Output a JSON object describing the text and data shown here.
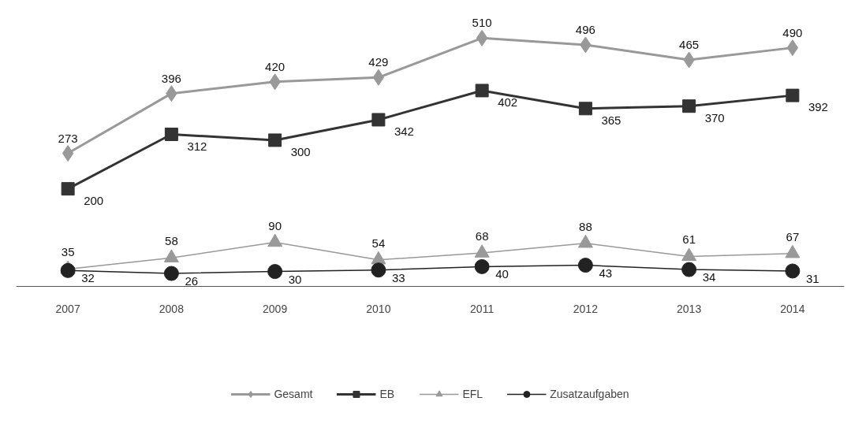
{
  "chart_data": {
    "type": "line",
    "categories": [
      "2007",
      "2008",
      "2009",
      "2010",
      "2011",
      "2012",
      "2013",
      "2014"
    ],
    "series": [
      {
        "name": "Gesamt",
        "color": "#999999",
        "marker": "diamond",
        "values": [
          273,
          396,
          420,
          429,
          510,
          496,
          465,
          490
        ]
      },
      {
        "name": "EB",
        "color": "#333333",
        "marker": "square",
        "values": [
          200,
          312,
          300,
          342,
          402,
          365,
          370,
          392
        ]
      },
      {
        "name": "EFL",
        "color": "#999999",
        "marker": "triangle",
        "values": [
          35,
          58,
          90,
          54,
          68,
          88,
          61,
          67
        ]
      },
      {
        "name": "Zusatzaufgaben",
        "color": "#222222",
        "marker": "circle",
        "values": [
          32,
          26,
          30,
          33,
          40,
          43,
          34,
          31
        ]
      }
    ],
    "data_labels": true,
    "legend": "bottom",
    "grid": false,
    "line_style": "solid"
  }
}
